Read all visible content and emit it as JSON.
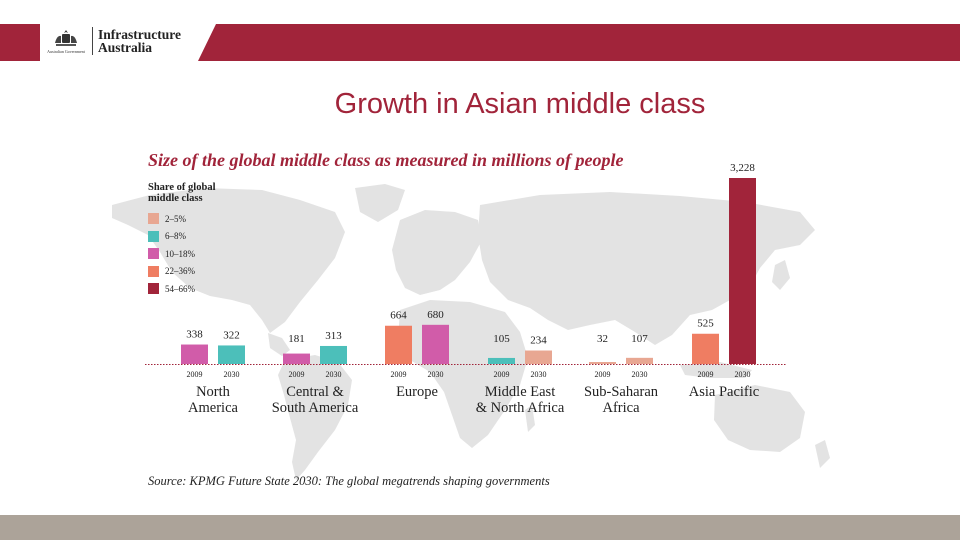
{
  "header": {
    "org_line1": "Infrastructure",
    "org_line2": "Australia",
    "gov_caption": "Australian Government"
  },
  "slide_title": "Growth in Asian middle class",
  "chart_data": {
    "type": "bar",
    "title": "Size of the global middle class as measured in millions of people",
    "unit": "millions of people",
    "categories": [
      {
        "name_lines": [
          "North",
          "America"
        ],
        "bars": [
          {
            "year": "2009",
            "value": 338,
            "label": "338",
            "share": "10–18%"
          },
          {
            "year": "2030",
            "value": 322,
            "label": "322",
            "share": "6–8%"
          }
        ]
      },
      {
        "name_lines": [
          "Central &",
          "South America"
        ],
        "bars": [
          {
            "year": "2009",
            "value": 181,
            "label": "181",
            "share": "10–18%"
          },
          {
            "year": "2030",
            "value": 313,
            "label": "313",
            "share": "6–8%"
          }
        ]
      },
      {
        "name_lines": [
          "Europe"
        ],
        "bars": [
          {
            "year": "2009",
            "value": 664,
            "label": "664",
            "share": "22–36%"
          },
          {
            "year": "2030",
            "value": 680,
            "label": "680",
            "share": "10–18%"
          }
        ]
      },
      {
        "name_lines": [
          "Middle East",
          "&  North Africa"
        ],
        "bars": [
          {
            "year": "2009",
            "value": 105,
            "label": "105",
            "share": "6–8%"
          },
          {
            "year": "2030",
            "value": 234,
            "label": "234",
            "share": "2–5%"
          }
        ]
      },
      {
        "name_lines": [
          "Sub-Saharan",
          "Africa"
        ],
        "bars": [
          {
            "year": "2009",
            "value": 32,
            "label": "32",
            "share": "2–5%"
          },
          {
            "year": "2030",
            "value": 107,
            "label": "107",
            "share": "2–5%"
          }
        ]
      },
      {
        "name_lines": [
          "Asia Pacific"
        ],
        "bars": [
          {
            "year": "2009",
            "value": 525,
            "label": "525",
            "share": "22–36%"
          },
          {
            "year": "2030",
            "value": 3228,
            "label": "3,228",
            "share": "54–66%"
          }
        ]
      }
    ],
    "legend": {
      "title": "Share of global middle class",
      "title_lines": [
        "Share of global",
        "middle class"
      ],
      "position": "top-left",
      "items": [
        {
          "label": "2–5%",
          "color": "#e8a792"
        },
        {
          "label": "6–8%",
          "color": "#4cbfba"
        },
        {
          "label": "10–18%",
          "color": "#d15ca9"
        },
        {
          "label": "22–36%",
          "color": "#ef7d62"
        },
        {
          "label": "54–66%",
          "color": "#a1243a"
        }
      ]
    },
    "colors": {
      "2–5%": "#e8a792",
      "6–8%": "#4cbfba",
      "10–18%": "#d15ca9",
      "22–36%": "#ef7d62",
      "54–66%": "#a1243a"
    },
    "ylim": [
      0,
      3228
    ],
    "grid": false,
    "background": "world map"
  },
  "source": "Source: KPMG Future State 2030: The global megatrends shaping governments",
  "colors": {
    "brand": "#a1243a",
    "footer": "#aca399",
    "baseline": "#a1243a",
    "map": "#e3e3e3"
  },
  "icons": {
    "crest": "coat-of-arms-icon"
  }
}
